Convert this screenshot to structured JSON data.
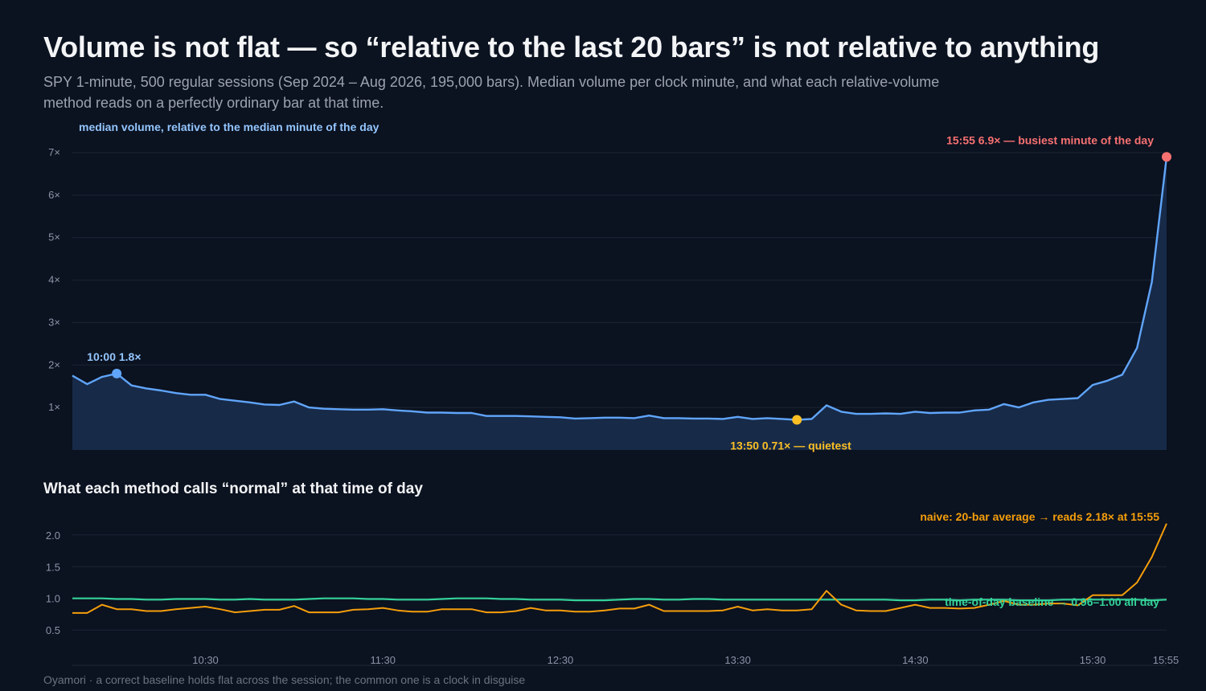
{
  "title": "Volume is not flat — so “relative to the last 20 bars” is not relative to anything",
  "subtitle": "SPY 1-minute, 500 regular sessions (Sep 2024 – Aug 2026, 195,000 bars). Median volume per clock minute, and what each relative-volume method reads on a perfectly ordinary bar at that time.",
  "footer": "Oyamori · a correct baseline holds flat across the session; the common one is a clock in disguise",
  "colors": {
    "background": "#0b1220",
    "volume_line": "#60a5fa",
    "volume_fill": "#172a48",
    "peak": "#f87171",
    "quiet": "#fbbf24",
    "naive": "#f59e0b",
    "baseline": "#34d399",
    "grid": "#1c2636"
  },
  "chart_data": [
    {
      "type": "area",
      "name": "median-volume",
      "series": [
        {
          "name": "median volume, relative to the median minute of the day",
          "x": [
            "09:45",
            "09:50",
            "09:55",
            "10:00",
            "10:05",
            "10:10",
            "10:15",
            "10:20",
            "10:25",
            "10:30",
            "10:35",
            "10:40",
            "10:45",
            "10:50",
            "10:55",
            "11:00",
            "11:05",
            "11:10",
            "11:15",
            "11:20",
            "11:25",
            "11:30",
            "11:35",
            "11:40",
            "11:45",
            "11:50",
            "11:55",
            "12:00",
            "12:05",
            "12:10",
            "12:15",
            "12:20",
            "12:25",
            "12:30",
            "12:35",
            "12:40",
            "12:45",
            "12:50",
            "12:55",
            "13:00",
            "13:05",
            "13:10",
            "13:15",
            "13:20",
            "13:25",
            "13:30",
            "13:35",
            "13:40",
            "13:45",
            "13:50",
            "13:55",
            "14:00",
            "14:05",
            "14:10",
            "14:15",
            "14:20",
            "14:25",
            "14:30",
            "14:35",
            "14:40",
            "14:45",
            "14:50",
            "14:55",
            "15:00",
            "15:05",
            "15:10",
            "15:15",
            "15:20",
            "15:25",
            "15:30",
            "15:35",
            "15:40",
            "15:45",
            "15:50",
            "15:55"
          ],
          "values": [
            1.75,
            1.55,
            1.72,
            1.8,
            1.52,
            1.45,
            1.4,
            1.34,
            1.3,
            1.3,
            1.2,
            1.16,
            1.12,
            1.07,
            1.06,
            1.14,
            1.0,
            0.97,
            0.96,
            0.95,
            0.95,
            0.96,
            0.93,
            0.91,
            0.88,
            0.88,
            0.87,
            0.87,
            0.8,
            0.8,
            0.8,
            0.79,
            0.78,
            0.77,
            0.74,
            0.75,
            0.76,
            0.76,
            0.75,
            0.81,
            0.75,
            0.75,
            0.74,
            0.74,
            0.73,
            0.78,
            0.73,
            0.75,
            0.73,
            0.71,
            0.73,
            1.05,
            0.9,
            0.85,
            0.85,
            0.86,
            0.85,
            0.9,
            0.87,
            0.88,
            0.88,
            0.93,
            0.95,
            1.08,
            1.0,
            1.12,
            1.18,
            1.2,
            1.22,
            1.53,
            1.63,
            1.77,
            2.4,
            3.95,
            6.9
          ]
        }
      ],
      "xlim": [
        "09:45",
        "15:55"
      ],
      "ylim": [
        0,
        7
      ],
      "y_ticks": [
        1,
        2,
        3,
        4,
        5,
        6,
        7
      ],
      "y_tick_labels": [
        "1×",
        "2×",
        "3×",
        "4×",
        "5×",
        "6×",
        "7×"
      ],
      "ylabel": "median volume, relative to the median minute of the day",
      "grid": true,
      "annotations": [
        {
          "x": "10:00",
          "y": 1.8,
          "text": "10:00  1.8×"
        },
        {
          "x": "13:50",
          "y": 0.71,
          "text": "13:50  0.71× — quietest"
        },
        {
          "x": "15:55",
          "y": 6.9,
          "text": "15:55  6.9× — busiest minute of the day"
        }
      ]
    },
    {
      "type": "line",
      "name": "method-comparison",
      "title": "What each method calls “normal” at that time of day",
      "x": [
        "09:45",
        "09:50",
        "09:55",
        "10:00",
        "10:05",
        "10:10",
        "10:15",
        "10:20",
        "10:25",
        "10:30",
        "10:35",
        "10:40",
        "10:45",
        "10:50",
        "10:55",
        "11:00",
        "11:05",
        "11:10",
        "11:15",
        "11:20",
        "11:25",
        "11:30",
        "11:35",
        "11:40",
        "11:45",
        "11:50",
        "11:55",
        "12:00",
        "12:05",
        "12:10",
        "12:15",
        "12:20",
        "12:25",
        "12:30",
        "12:35",
        "12:40",
        "12:45",
        "12:50",
        "12:55",
        "13:00",
        "13:05",
        "13:10",
        "13:15",
        "13:20",
        "13:25",
        "13:30",
        "13:35",
        "13:40",
        "13:45",
        "13:50",
        "13:55",
        "14:00",
        "14:05",
        "14:10",
        "14:15",
        "14:20",
        "14:25",
        "14:30",
        "14:35",
        "14:40",
        "14:45",
        "14:50",
        "14:55",
        "15:00",
        "15:05",
        "15:10",
        "15:15",
        "15:20",
        "15:25",
        "15:30",
        "15:35",
        "15:40",
        "15:45",
        "15:50",
        "15:55"
      ],
      "series": [
        {
          "name": "naive: 20-bar average",
          "values": [
            0.77,
            0.77,
            0.9,
            0.83,
            0.83,
            0.8,
            0.8,
            0.83,
            0.85,
            0.87,
            0.83,
            0.78,
            0.8,
            0.82,
            0.82,
            0.88,
            0.78,
            0.78,
            0.78,
            0.82,
            0.83,
            0.85,
            0.81,
            0.79,
            0.79,
            0.83,
            0.83,
            0.83,
            0.78,
            0.78,
            0.8,
            0.85,
            0.81,
            0.81,
            0.79,
            0.79,
            0.81,
            0.84,
            0.84,
            0.9,
            0.8,
            0.8,
            0.8,
            0.8,
            0.81,
            0.87,
            0.81,
            0.83,
            0.81,
            0.81,
            0.83,
            1.12,
            0.9,
            0.81,
            0.8,
            0.8,
            0.85,
            0.9,
            0.85,
            0.85,
            0.84,
            0.85,
            0.9,
            0.96,
            0.9,
            0.9,
            0.92,
            0.92,
            0.89,
            1.05,
            1.05,
            1.05,
            1.25,
            1.65,
            2.18
          ]
        },
        {
          "name": "time-of-day baseline",
          "values": [
            1.0,
            1.0,
            1.0,
            0.99,
            0.99,
            0.98,
            0.98,
            0.99,
            0.99,
            0.99,
            0.98,
            0.98,
            0.99,
            0.98,
            0.98,
            0.98,
            0.99,
            1.0,
            1.0,
            1.0,
            0.99,
            0.99,
            0.98,
            0.98,
            0.98,
            0.99,
            1.0,
            1.0,
            1.0,
            0.99,
            0.99,
            0.98,
            0.98,
            0.98,
            0.97,
            0.97,
            0.97,
            0.98,
            0.99,
            0.99,
            0.98,
            0.98,
            0.99,
            0.99,
            0.98,
            0.98,
            0.98,
            0.98,
            0.98,
            0.98,
            0.98,
            0.98,
            0.98,
            0.98,
            0.98,
            0.98,
            0.97,
            0.97,
            0.98,
            0.98,
            0.97,
            0.98,
            0.98,
            0.98,
            0.97,
            0.97,
            0.97,
            0.98,
            0.98,
            0.98,
            0.98,
            0.98,
            0.98,
            0.97,
            0.98
          ]
        }
      ],
      "ylim": [
        0.3,
        2.2
      ],
      "y_ticks": [
        0.5,
        1.0,
        1.5,
        2.0
      ],
      "y_tick_labels": [
        "0.5",
        "1.0",
        "1.5",
        "2.0"
      ],
      "x_ticks": [
        "10:30",
        "11:30",
        "12:30",
        "13:30",
        "14:30",
        "15:30",
        "15:55"
      ],
      "grid": true,
      "annotations": [
        {
          "series": "naive: 20-bar average",
          "text": "naive: 20-bar average  →  reads 2.18× at 15:55"
        },
        {
          "series": "time-of-day baseline",
          "text": "time-of-day baseline  →  0.96–1.00 all day"
        }
      ]
    }
  ]
}
